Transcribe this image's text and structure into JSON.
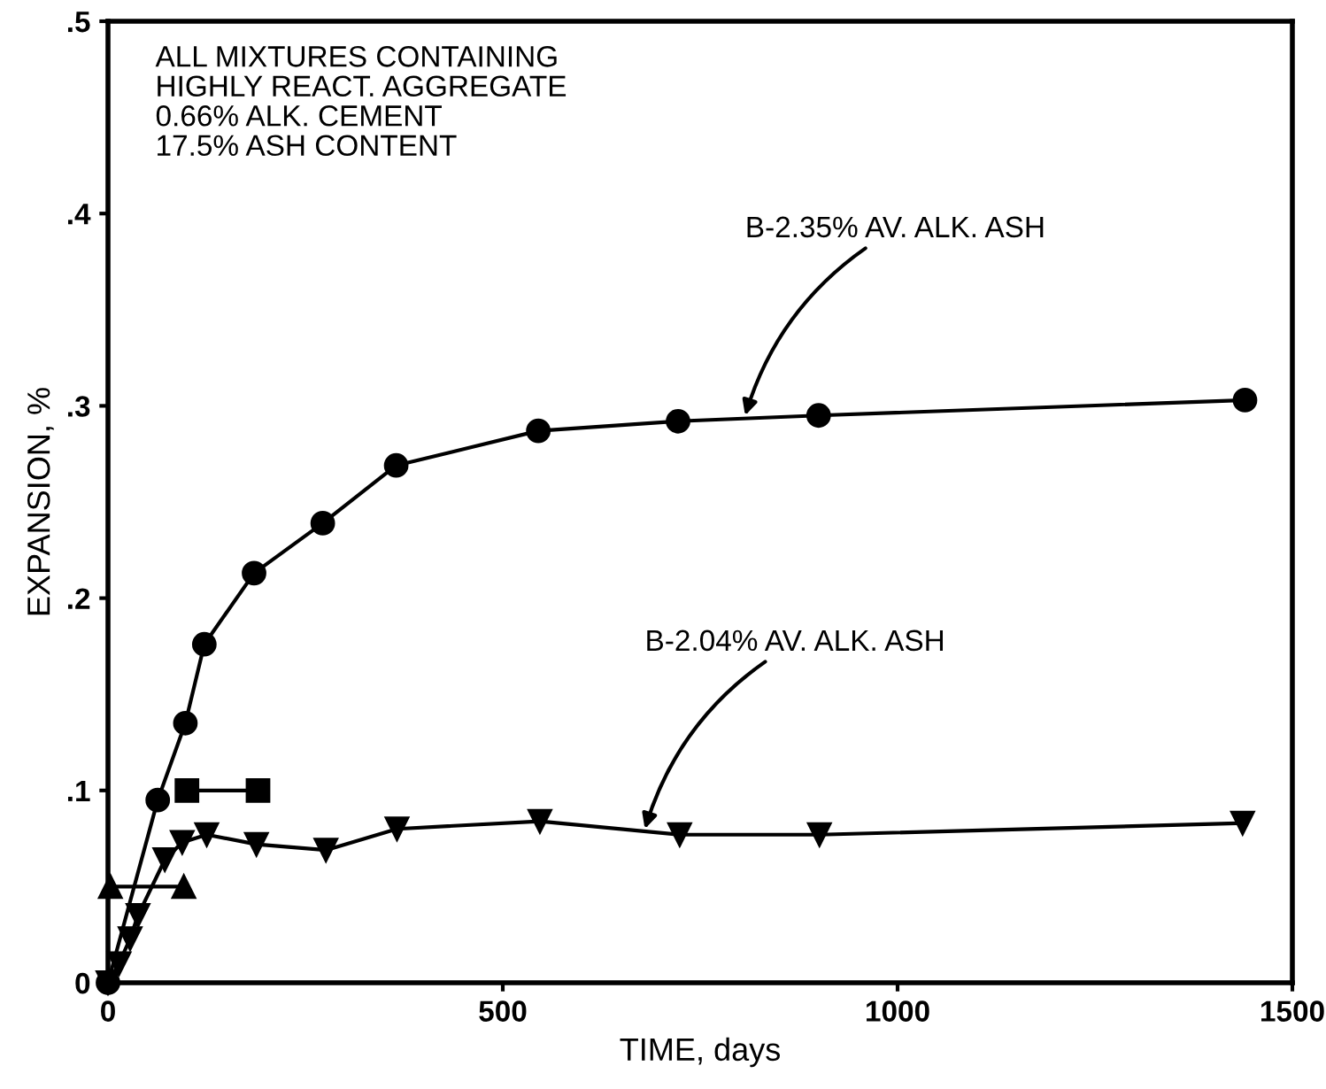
{
  "chart_data": {
    "type": "line",
    "xlabel": "TIME, days",
    "ylabel": "EXPANSION, %",
    "xlim": [
      0,
      1500
    ],
    "xticks": [
      0,
      500,
      1000,
      1500
    ],
    "ylim": [
      0,
      0.5
    ],
    "yticks": [
      0,
      {
        "value": 0.1,
        "label": ".1"
      },
      {
        "value": 0.2,
        "label": ".2"
      },
      {
        "value": 0.3,
        "label": ".3"
      },
      {
        "value": 0.4,
        "label": ".4"
      },
      {
        "value": 0.5,
        "label": ".5"
      }
    ],
    "grid": false,
    "legend": false,
    "line_style": "solid",
    "series": [
      {
        "color": "#000000",
        "marker": "circle",
        "x": [
          0,
          63,
          98,
          122,
          185,
          272,
          365,
          545,
          722,
          900,
          1440
        ],
        "values": [
          0,
          0.095,
          0.135,
          0.176,
          0.213,
          0.239,
          0.269,
          0.287,
          0.292,
          0.295,
          0.303
        ]
      },
      {
        "color": "#000000",
        "marker": "triangle_down",
        "x": [
          0,
          14,
          28,
          38,
          72,
          94,
          125,
          188,
          276,
          366,
          547,
          724,
          901,
          1437
        ],
        "values": [
          0,
          0.01,
          0.023,
          0.035,
          0.064,
          0.073,
          0.077,
          0.072,
          0.069,
          0.08,
          0.084,
          0.077,
          0.077,
          0.083
        ]
      },
      {
        "color": "#000000",
        "marker": "square",
        "x": [
          100,
          190
        ],
        "values": [
          0.1,
          0.1
        ]
      },
      {
        "color": "#000000",
        "marker": "triangle",
        "x": [
          3,
          96
        ],
        "values": [
          0.05,
          0.05
        ]
      }
    ],
    "annotations": [
      "ALL MIXTURES CONTAINING\nHIGHLY REACT. AGGREGATE\n0.66% ALK. CEMENT\n17.5% ASH CONTENT",
      {
        "text": "B-2.35% AV. ALK. ASH",
        "x": 807,
        "y": 0.295
      },
      {
        "text": "B-2.04% AV. ALK. ASH",
        "x": 680,
        "y": 0.08
      }
    ]
  }
}
